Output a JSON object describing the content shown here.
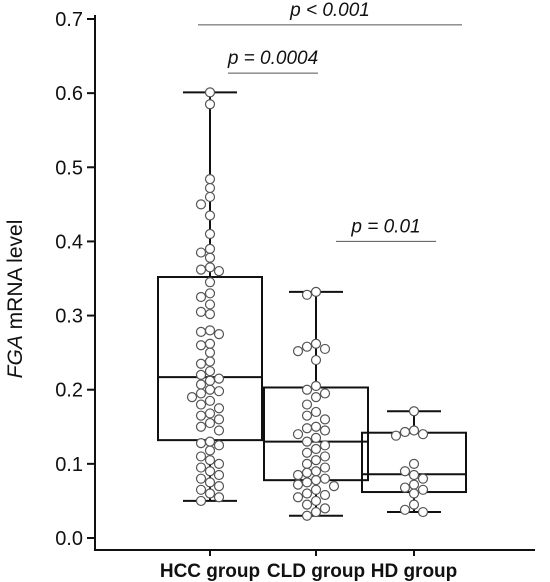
{
  "chart_data": {
    "type": "box",
    "ylabel_italic": "FGA",
    "ylabel_rest": " mRNA level",
    "ylim": [
      0,
      0.7
    ],
    "yticks": [
      "0.0",
      "0.1",
      "0.2",
      "0.3",
      "0.4",
      "0.5",
      "0.6",
      "0.7"
    ],
    "grid": false,
    "categories": [
      "HCC group",
      "CLD group",
      "HD group"
    ],
    "boxes": [
      {
        "name": "HCC group",
        "whisker_low": 0.05,
        "q1": 0.132,
        "median": 0.217,
        "q3": 0.352,
        "whisker_high": 0.601,
        "points": [
          0.601,
          0.585,
          0.484,
          0.472,
          0.46,
          0.45,
          0.435,
          0.41,
          0.39,
          0.385,
          0.378,
          0.365,
          0.362,
          0.36,
          0.345,
          0.33,
          0.325,
          0.315,
          0.305,
          0.302,
          0.28,
          0.278,
          0.275,
          0.262,
          0.26,
          0.25,
          0.238,
          0.235,
          0.225,
          0.22,
          0.215,
          0.212,
          0.207,
          0.2,
          0.198,
          0.195,
          0.19,
          0.185,
          0.18,
          0.175,
          0.168,
          0.165,
          0.16,
          0.155,
          0.15,
          0.145,
          0.13,
          0.128,
          0.125,
          0.118,
          0.11,
          0.105,
          0.1,
          0.095,
          0.09,
          0.085,
          0.08,
          0.075,
          0.07,
          0.065,
          0.06,
          0.055,
          0.05
        ]
      },
      {
        "name": "CLD group",
        "whisker_low": 0.03,
        "q1": 0.078,
        "median": 0.13,
        "q3": 0.203,
        "whisker_high": 0.332,
        "points": [
          0.332,
          0.328,
          0.262,
          0.258,
          0.255,
          0.252,
          0.24,
          0.205,
          0.2,
          0.195,
          0.19,
          0.18,
          0.17,
          0.165,
          0.16,
          0.15,
          0.148,
          0.145,
          0.14,
          0.135,
          0.13,
          0.125,
          0.12,
          0.115,
          0.11,
          0.105,
          0.1,
          0.095,
          0.09,
          0.088,
          0.085,
          0.08,
          0.078,
          0.075,
          0.072,
          0.07,
          0.065,
          0.06,
          0.058,
          0.055,
          0.05,
          0.045,
          0.04,
          0.035,
          0.03
        ]
      },
      {
        "name": "HD group",
        "whisker_low": 0.035,
        "q1": 0.062,
        "median": 0.086,
        "q3": 0.142,
        "whisker_high": 0.171,
        "points": [
          0.171,
          0.145,
          0.143,
          0.14,
          0.138,
          0.1,
          0.09,
          0.085,
          0.08,
          0.072,
          0.068,
          0.065,
          0.06,
          0.045,
          0.038,
          0.035
        ]
      }
    ],
    "annotations": [
      {
        "text": "p < 0.001",
        "from": "HCC group",
        "to": "HD group",
        "y": 0.692
      },
      {
        "text": "p = 0.0004",
        "from": "HCC group",
        "to": "CLD group",
        "y": 0.627
      },
      {
        "text": "p = 0.01",
        "from": "CLD group",
        "to": "HD group",
        "y": 0.4
      }
    ]
  }
}
